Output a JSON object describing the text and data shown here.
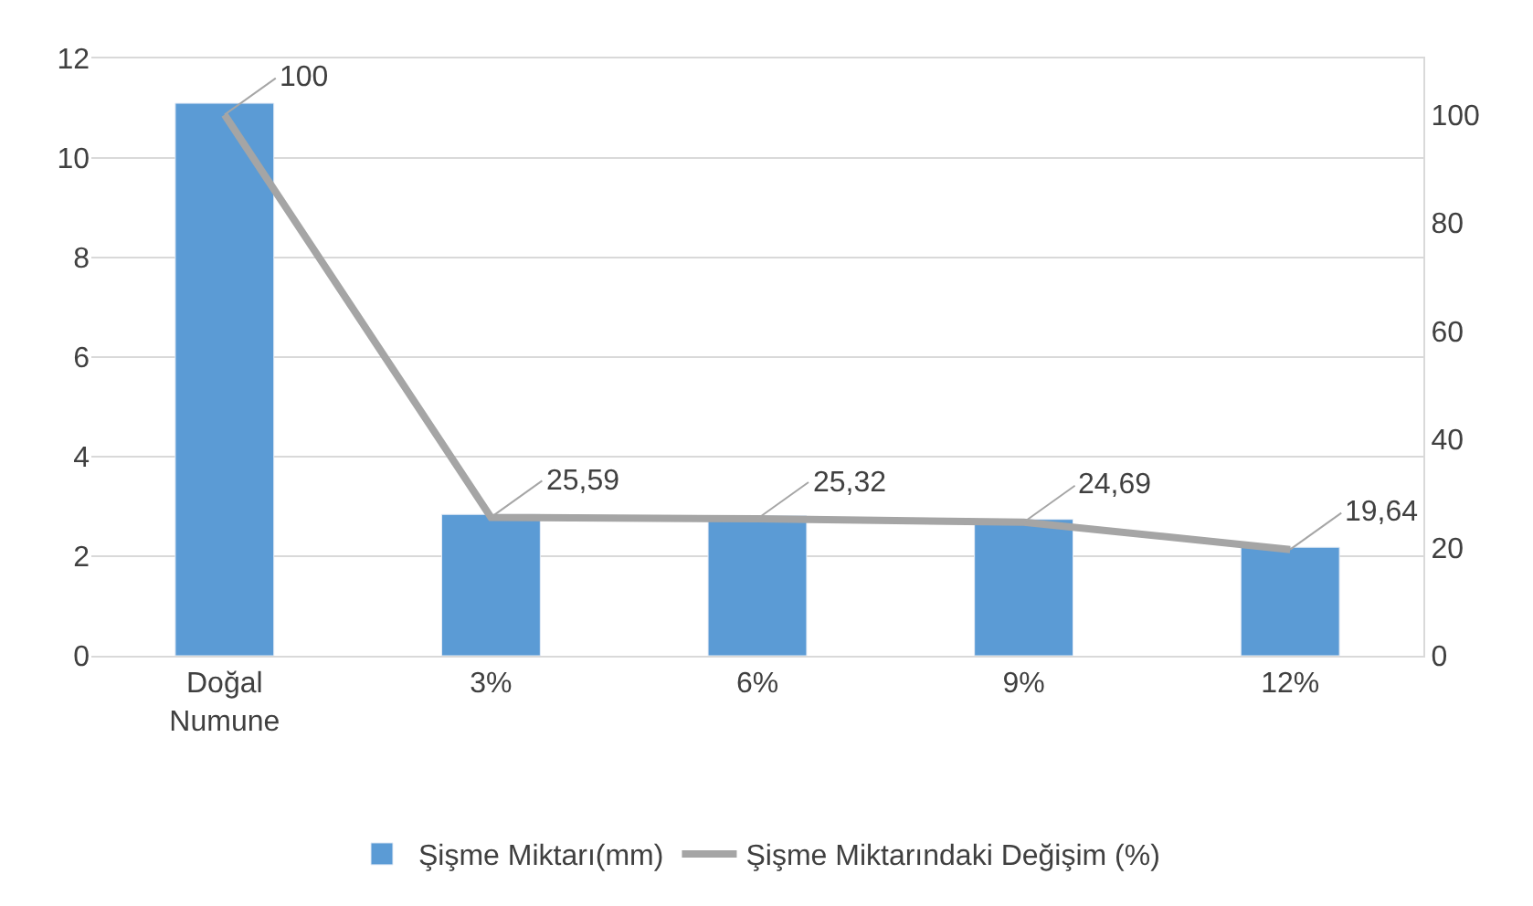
{
  "chart_data": {
    "type": "bar",
    "categories": [
      "Doğal Numune",
      "3%",
      "6%",
      "9%",
      "12%"
    ],
    "series": [
      {
        "name": "Şişme Miktarı(mm)",
        "color": "#5b9bd5",
        "values": [
          11.1,
          2.84,
          2.81,
          2.74,
          2.18
        ]
      },
      {
        "name": "Şişme Miktarındaki Değişim (%)",
        "type": "line",
        "axis": "y2",
        "color": "#a5a5a5",
        "values": [
          100,
          25.59,
          25.32,
          24.69,
          19.64
        ],
        "value_labels": [
          "100",
          "25,59",
          "25,32",
          "24,69",
          "19,64"
        ]
      }
    ],
    "ylim": [
      0,
      12
    ],
    "yticks": [
      0,
      2,
      4,
      6,
      8,
      10,
      12
    ],
    "y2lim": [
      0,
      110.4
    ],
    "y2ticks": [
      0,
      20,
      40,
      60,
      80,
      100
    ],
    "grid": "y",
    "legend": "bottom",
    "marker": "none"
  }
}
